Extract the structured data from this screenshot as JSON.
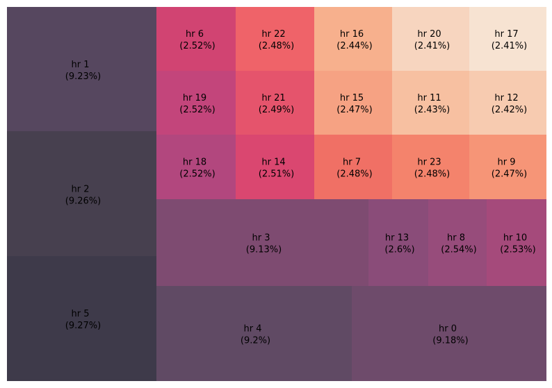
{
  "chart_data": {
    "type": "treemap",
    "title": "",
    "tiles": [
      {
        "label": "hr 1",
        "pct": "(9.23%)",
        "value": 9.23,
        "color": "#56475f"
      },
      {
        "label": "hr 2",
        "pct": "(9.26%)",
        "value": 9.26,
        "color": "#47404f"
      },
      {
        "label": "hr 5",
        "pct": "(9.27%)",
        "value": 9.27,
        "color": "#3e3a4a"
      },
      {
        "label": "hr 6",
        "pct": "(2.52%)",
        "value": 2.52,
        "color": "#d14472"
      },
      {
        "label": "hr 22",
        "pct": "(2.48%)",
        "value": 2.48,
        "color": "#ef6369"
      },
      {
        "label": "hr 16",
        "pct": "(2.44%)",
        "value": 2.44,
        "color": "#f7b08d"
      },
      {
        "label": "hr 20",
        "pct": "(2.41%)",
        "value": 2.41,
        "color": "#f7d5bf"
      },
      {
        "label": "hr 17",
        "pct": "(2.41%)",
        "value": 2.41,
        "color": "#f7e3d2"
      },
      {
        "label": "hr 19",
        "pct": "(2.52%)",
        "value": 2.52,
        "color": "#c3457b"
      },
      {
        "label": "hr 21",
        "pct": "(2.49%)",
        "value": 2.49,
        "color": "#e5546c"
      },
      {
        "label": "hr 15",
        "pct": "(2.47%)",
        "value": 2.47,
        "color": "#f6a283"
      },
      {
        "label": "hr 11",
        "pct": "(2.43%)",
        "value": 2.43,
        "color": "#f7c0a1"
      },
      {
        "label": "hr 12",
        "pct": "(2.42%)",
        "value": 2.42,
        "color": "#f7cbb0"
      },
      {
        "label": "hr 18",
        "pct": "(2.52%)",
        "value": 2.52,
        "color": "#b2477e"
      },
      {
        "label": "hr 14",
        "pct": "(2.51%)",
        "value": 2.51,
        "color": "#da4770"
      },
      {
        "label": "hr 7",
        "pct": "(2.48%)",
        "value": 2.48,
        "color": "#f07065"
      },
      {
        "label": "hr 23",
        "pct": "(2.48%)",
        "value": 2.48,
        "color": "#f4836c"
      },
      {
        "label": "hr 9",
        "pct": "(2.47%)",
        "value": 2.47,
        "color": "#f69577"
      },
      {
        "label": "hr 3",
        "pct": "(9.13%)",
        "value": 9.13,
        "color": "#7e4b71"
      },
      {
        "label": "hr 13",
        "pct": "(2.6%)",
        "value": 2.6,
        "color": "#8a4c79"
      },
      {
        "label": "hr 8",
        "pct": "(2.54%)",
        "value": 2.54,
        "color": "#974c7b"
      },
      {
        "label": "hr 10",
        "pct": "(2.53%)",
        "value": 2.53,
        "color": "#a54a7b"
      },
      {
        "label": "hr 4",
        "pct": "(9.2%)",
        "value": 9.2,
        "color": "#604a64"
      },
      {
        "label": "hr 0",
        "pct": "(9.18%)",
        "value": 9.18,
        "color": "#6e4b6b"
      }
    ]
  }
}
